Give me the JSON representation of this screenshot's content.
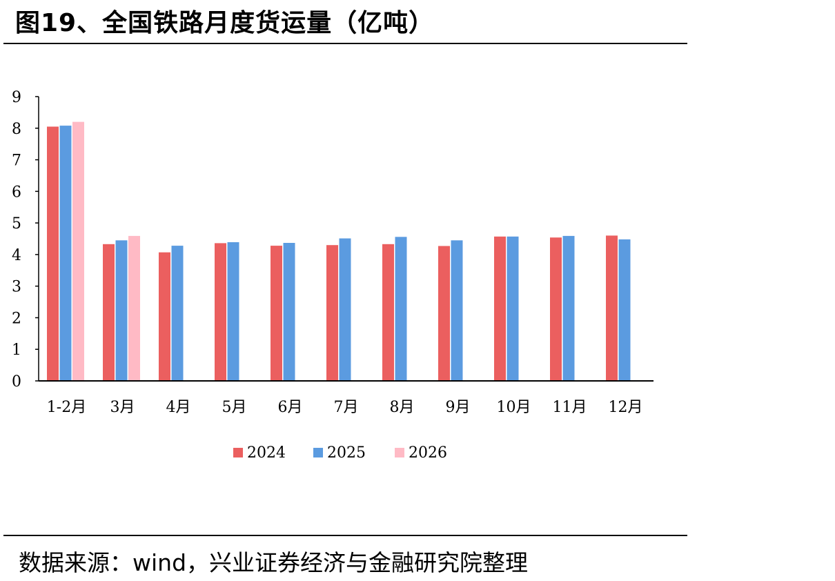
{
  "header": {
    "title": "图19、全国铁路月度货运量（亿吨）"
  },
  "footer": {
    "source": "数据来源：wind，兴业证券经济与金融研究院整理"
  },
  "chart_data": {
    "type": "bar",
    "title": "图19、全国铁路月度货运量（亿吨）",
    "xlabel": "",
    "ylabel": "",
    "ylim": [
      0,
      9
    ],
    "yticks": [
      "0",
      "1",
      "2",
      "3",
      "4",
      "5",
      "6",
      "7",
      "8",
      "9"
    ],
    "categories": [
      "1-2月",
      "3月",
      "4月",
      "5月",
      "6月",
      "7月",
      "8月",
      "9月",
      "10月",
      "11月",
      "12月"
    ],
    "series": [
      {
        "name": "2024",
        "color": "#EB5F5F",
        "values": [
          8.05,
          4.33,
          4.07,
          4.36,
          4.28,
          4.3,
          4.33,
          4.27,
          4.57,
          4.54,
          4.6
        ]
      },
      {
        "name": "2025",
        "color": "#5B9BE0",
        "values": [
          8.08,
          4.45,
          4.28,
          4.39,
          4.37,
          4.51,
          4.56,
          4.45,
          4.57,
          4.59,
          4.48
        ]
      },
      {
        "name": "2026",
        "color": "#FFBAC5",
        "values": [
          8.2,
          4.59,
          null,
          null,
          null,
          null,
          null,
          null,
          null,
          null,
          null
        ]
      }
    ],
    "grid": false,
    "legend": "bottom-center"
  }
}
